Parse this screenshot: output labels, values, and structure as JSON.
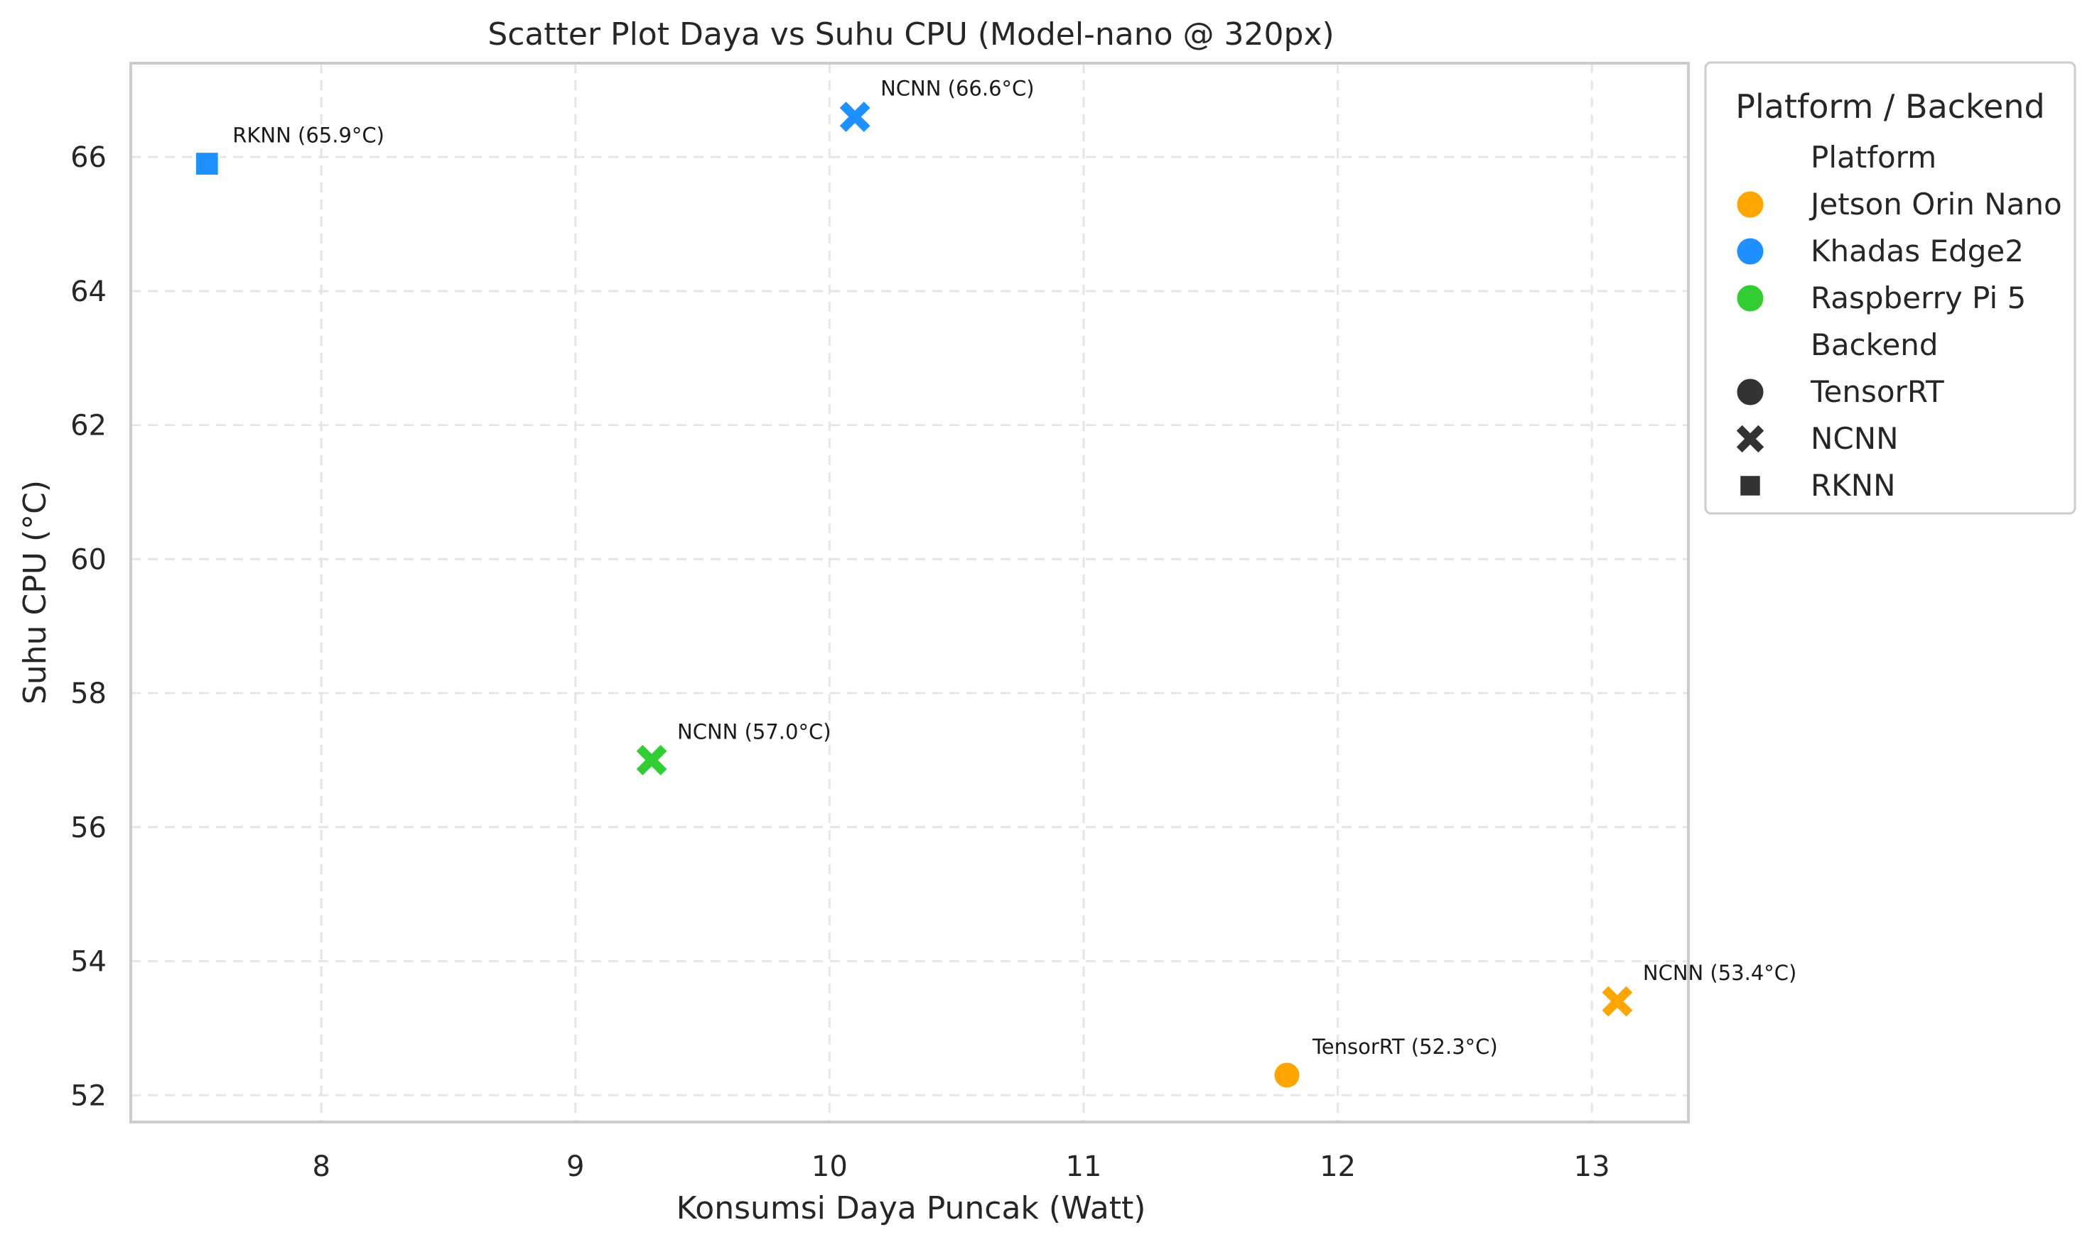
{
  "chart_data": {
    "type": "scatter",
    "title": "Scatter Plot Daya vs Suhu CPU (Model-nano @ 320px)",
    "xlabel": "Konsumsi Daya Puncak (Watt)",
    "ylabel": "Suhu CPU (°C)",
    "xlim": [
      7.25,
      13.38
    ],
    "ylim": [
      51.6,
      67.4
    ],
    "xticks": [
      8,
      9,
      10,
      11,
      12,
      13
    ],
    "yticks": [
      52,
      54,
      56,
      58,
      60,
      62,
      64,
      66
    ],
    "grid": true,
    "legend_position": "outside-top-right",
    "points": [
      {
        "x": 7.55,
        "y": 65.9,
        "platform": "Khadas Edge2",
        "backend": "RKNN",
        "label": "RKNN (65.9°C)"
      },
      {
        "x": 10.1,
        "y": 66.6,
        "platform": "Khadas Edge2",
        "backend": "NCNN",
        "label": "NCNN (66.6°C)"
      },
      {
        "x": 9.3,
        "y": 57.0,
        "platform": "Raspberry Pi 5",
        "backend": "NCNN",
        "label": "NCNN (57.0°C)"
      },
      {
        "x": 11.8,
        "y": 52.3,
        "platform": "Jetson Orin Nano",
        "backend": "TensorRT",
        "label": "TensorRT (52.3°C)"
      },
      {
        "x": 13.1,
        "y": 53.4,
        "platform": "Jetson Orin Nano",
        "backend": "NCNN",
        "label": "NCNN (53.4°C)"
      }
    ],
    "legend": {
      "title": "Platform / Backend",
      "platform_header": "Platform",
      "platforms": [
        {
          "name": "Jetson Orin Nano",
          "color": "#FFA500"
        },
        {
          "name": "Khadas Edge2",
          "color": "#1E90FF"
        },
        {
          "name": "Raspberry Pi 5",
          "color": "#32CD32"
        }
      ],
      "backend_header": "Backend",
      "backends": [
        {
          "name": "TensorRT",
          "marker": "circle"
        },
        {
          "name": "NCNN",
          "marker": "x"
        },
        {
          "name": "RKNN",
          "marker": "square"
        }
      ],
      "marker_color": "#333333"
    }
  }
}
